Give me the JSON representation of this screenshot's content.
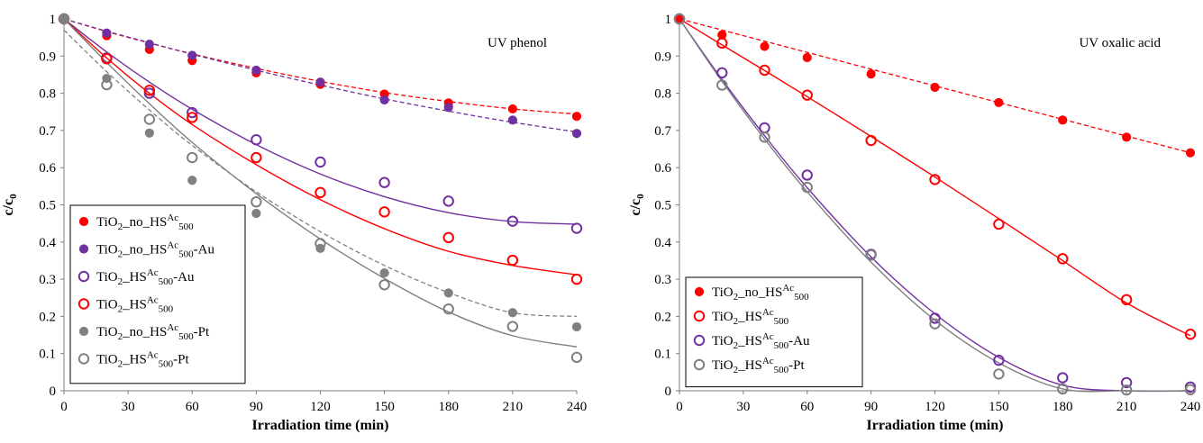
{
  "chart_data": [
    {
      "type": "scatter",
      "annotation": "UV phenol",
      "xlabel": "Irradiation time (min)",
      "ylabel": {
        "main": "c/c",
        "sub": "0"
      },
      "xlim": [
        0,
        240
      ],
      "ylim": [
        0,
        1
      ],
      "xticks": [
        "0",
        "30",
        "60",
        "90",
        "120",
        "150",
        "180",
        "210",
        "240"
      ],
      "yticks": [
        "0",
        "0.1",
        "0.2",
        "0.3",
        "0.4",
        "0.5",
        "0.6",
        "0.7",
        "0.8",
        "0.9",
        "1"
      ],
      "legend_position": "bottom-left",
      "x": [
        0,
        20,
        40,
        60,
        90,
        120,
        150,
        180,
        210,
        240
      ],
      "series": [
        {
          "name": "TiO2_no_HSAc500",
          "legend": {
            "pre": "TiO",
            "sub1": "2",
            "mid": "_no_HS",
            "sup": "Ac",
            "sub2": "500",
            "post": ""
          },
          "color": "#ff0000",
          "marker": "filled",
          "fit": "dashed",
          "values": [
            1.0,
            0.955,
            0.918,
            0.888,
            0.855,
            0.824,
            0.798,
            0.774,
            0.758,
            0.738
          ],
          "fit_values": [
            1.0,
            0.966,
            0.935,
            0.906,
            0.867,
            0.832,
            0.802,
            0.778,
            0.758,
            0.744
          ]
        },
        {
          "name": "TiO2_no_HSAc500-Au",
          "legend": {
            "pre": "TiO",
            "sub1": "2",
            "mid": "_no_HS",
            "sup": "Ac",
            "sub2": "500",
            "post": "-Au"
          },
          "color": "#7030a0",
          "marker": "filled",
          "fit": "dashed",
          "values": [
            1.0,
            0.962,
            0.932,
            0.902,
            0.862,
            0.83,
            0.782,
            0.762,
            0.728,
            0.692
          ],
          "fit_values": [
            1.0,
            0.967,
            0.936,
            0.905,
            0.862,
            0.822,
            0.785,
            0.752,
            0.722,
            0.696
          ]
        },
        {
          "name": "TiO2_HSAc500-Au",
          "legend": {
            "pre": "TiO",
            "sub1": "2",
            "mid": "_HS",
            "sup": "Ac",
            "sub2": "500",
            "post": "-Au"
          },
          "color": "#7030a0",
          "marker": "open",
          "fit": "solid",
          "values": [
            1.0,
            0.895,
            0.8,
            0.748,
            0.675,
            0.615,
            0.56,
            0.51,
            0.456,
            0.437
          ],
          "fit_values": [
            1.0,
            0.911,
            0.83,
            0.757,
            0.662,
            0.583,
            0.522,
            0.479,
            0.455,
            0.448
          ]
        },
        {
          "name": "TiO2_HSAc500",
          "legend": {
            "pre": "TiO",
            "sub1": "2",
            "mid": "_HS",
            "sup": "Ac",
            "sub2": "500",
            "post": ""
          },
          "color": "#ff0000",
          "marker": "open",
          "fit": "solid",
          "values": [
            1.0,
            0.893,
            0.808,
            0.735,
            0.627,
            0.533,
            0.481,
            0.412,
            0.351,
            0.3
          ],
          "fit_values": [
            1.0,
            0.895,
            0.8,
            0.716,
            0.608,
            0.514,
            0.436,
            0.375,
            0.337,
            0.312
          ]
        },
        {
          "name": "TiO2_no_HSAc500-Pt",
          "legend": {
            "pre": "TiO",
            "sub1": "2",
            "mid": "_no_HS",
            "sup": "Ac",
            "sub2": "500",
            "post": "-Pt"
          },
          "color": "#808080",
          "marker": "filled",
          "fit": "dashed",
          "values": [
            1.0,
            0.84,
            0.693,
            0.566,
            0.477,
            0.383,
            0.317,
            0.263,
            0.21,
            0.172
          ],
          "fit_values": [
            0.97,
            0.858,
            0.755,
            0.66,
            0.535,
            0.428,
            0.337,
            0.264,
            0.21,
            0.2
          ]
        },
        {
          "name": "TiO2_HSAc500-Pt",
          "legend": {
            "pre": "TiO",
            "sub1": "2",
            "mid": "_HS",
            "sup": "Ac",
            "sub2": "500",
            "post": "-Pt"
          },
          "color": "#808080",
          "marker": "open",
          "fit": "solid",
          "values": [
            1.0,
            0.823,
            0.73,
            0.627,
            0.508,
            0.396,
            0.285,
            0.22,
            0.173,
            0.09
          ],
          "fit_values": [
            1.0,
            0.883,
            0.772,
            0.668,
            0.53,
            0.408,
            0.302,
            0.212,
            0.148,
            0.118
          ]
        }
      ]
    },
    {
      "type": "scatter",
      "annotation": "UV oxalic acid",
      "xlabel": "Irradiation time (min)",
      "ylabel": {
        "main": "c/c",
        "sub": "0"
      },
      "xlim": [
        0,
        240
      ],
      "ylim": [
        0,
        1
      ],
      "xticks": [
        "0",
        "30",
        "60",
        "90",
        "120",
        "150",
        "180",
        "210",
        "240"
      ],
      "yticks": [
        "0",
        "0.1",
        "0.2",
        "0.3",
        "0.4",
        "0.5",
        "0.6",
        "0.7",
        "0.8",
        "0.9",
        "1"
      ],
      "legend_position": "bottom-left",
      "x": [
        0,
        20,
        40,
        60,
        90,
        120,
        150,
        180,
        210,
        240
      ],
      "series": [
        {
          "name": "TiO2_no_HSAc500",
          "legend": {
            "pre": "TiO",
            "sub1": "2",
            "mid": "_no_HS",
            "sup": "Ac",
            "sub2": "500",
            "post": ""
          },
          "color": "#ff0000",
          "marker": "filled",
          "fit": "dashed",
          "values": [
            1.0,
            0.957,
            0.926,
            0.896,
            0.852,
            0.816,
            0.775,
            0.728,
            0.682,
            0.64
          ],
          "fit_values": [
            1.0,
            0.97,
            0.94,
            0.91,
            0.865,
            0.82,
            0.775,
            0.73,
            0.685,
            0.64
          ]
        },
        {
          "name": "TiO2_HSAc500",
          "legend": {
            "pre": "TiO",
            "sub1": "2",
            "mid": "_HS",
            "sup": "Ac",
            "sub2": "500",
            "post": ""
          },
          "color": "#ff0000",
          "marker": "open",
          "fit": "solid",
          "values": [
            1.0,
            0.935,
            0.862,
            0.795,
            0.673,
            0.568,
            0.448,
            0.355,
            0.245,
            0.152
          ],
          "fit_values": [
            1.0,
            0.93,
            0.861,
            0.791,
            0.684,
            0.575,
            0.463,
            0.35,
            0.236,
            0.148
          ]
        },
        {
          "name": "TiO2_HSAc500-Au",
          "legend": {
            "pre": "TiO",
            "sub1": "2",
            "mid": "_HS",
            "sup": "Ac",
            "sub2": "500",
            "post": "-Au"
          },
          "color": "#7030a0",
          "marker": "open",
          "fit": "solid",
          "values": [
            1.0,
            0.855,
            0.707,
            0.58,
            0.367,
            0.195,
            0.082,
            0.035,
            0.022,
            0.01
          ],
          "fit_values": [
            1.0,
            0.837,
            0.686,
            0.546,
            0.36,
            0.207,
            0.09,
            0.015,
            0.0,
            0.0
          ]
        },
        {
          "name": "TiO2_HSAc500-Pt",
          "legend": {
            "pre": "TiO",
            "sub1": "2",
            "mid": "_HS",
            "sup": "Ac",
            "sub2": "500",
            "post": "-Pt"
          },
          "color": "#808080",
          "marker": "open",
          "fit": "solid",
          "values": [
            1.0,
            0.822,
            0.682,
            0.547,
            0.365,
            0.18,
            0.045,
            0.005,
            0.002,
            0.003
          ],
          "fit_values": [
            1.0,
            0.832,
            0.677,
            0.535,
            0.346,
            0.19,
            0.075,
            0.005,
            0.0,
            0.0
          ]
        }
      ]
    }
  ]
}
